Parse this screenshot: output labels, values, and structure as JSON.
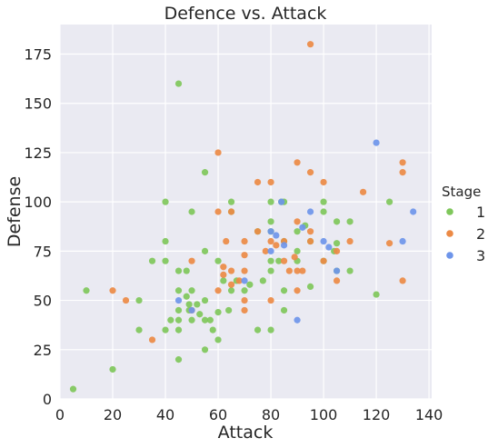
{
  "chart_data": {
    "type": "scatter",
    "title": "Defence vs. Attack",
    "xlabel": "Attack",
    "ylabel": "Defense",
    "xlim": [
      0,
      141
    ],
    "ylim": [
      0,
      190
    ],
    "xticks": [
      0,
      20,
      40,
      60,
      80,
      100,
      120,
      140
    ],
    "yticks": [
      0,
      25,
      50,
      75,
      100,
      125,
      150,
      175
    ],
    "grid": true,
    "background": "#eaeaf2",
    "legend": {
      "title": "Stage",
      "position": "right"
    },
    "series": [
      {
        "name": "1",
        "color": "#7fc75b",
        "points": [
          [
            5,
            5
          ],
          [
            10,
            55
          ],
          [
            20,
            15
          ],
          [
            30,
            50
          ],
          [
            30,
            35
          ],
          [
            35,
            70
          ],
          [
            40,
            100
          ],
          [
            40,
            80
          ],
          [
            40,
            70
          ],
          [
            40,
            35
          ],
          [
            42,
            40
          ],
          [
            45,
            160
          ],
          [
            45,
            65
          ],
          [
            45,
            55
          ],
          [
            45,
            45
          ],
          [
            45,
            40
          ],
          [
            45,
            35
          ],
          [
            45,
            20
          ],
          [
            48,
            52
          ],
          [
            48,
            65
          ],
          [
            49,
            45
          ],
          [
            49,
            48
          ],
          [
            50,
            95
          ],
          [
            50,
            55
          ],
          [
            50,
            40
          ],
          [
            52,
            48
          ],
          [
            53,
            43
          ],
          [
            55,
            115
          ],
          [
            55,
            75
          ],
          [
            55,
            50
          ],
          [
            55,
            40
          ],
          [
            55,
            25
          ],
          [
            57,
            40
          ],
          [
            58,
            35
          ],
          [
            60,
            70
          ],
          [
            60,
            44
          ],
          [
            60,
            30
          ],
          [
            62,
            60
          ],
          [
            64,
            45
          ],
          [
            65,
            100
          ],
          [
            65,
            95
          ],
          [
            65,
            55
          ],
          [
            67,
            60
          ],
          [
            70,
            55
          ],
          [
            72,
            58
          ],
          [
            75,
            85
          ],
          [
            75,
            35
          ],
          [
            77,
            60
          ],
          [
            80,
            100
          ],
          [
            80,
            90
          ],
          [
            80,
            85
          ],
          [
            80,
            70
          ],
          [
            80,
            65
          ],
          [
            80,
            35
          ],
          [
            83,
            70
          ],
          [
            84,
            100
          ],
          [
            85,
            100
          ],
          [
            85,
            80
          ],
          [
            85,
            55
          ],
          [
            85,
            45
          ],
          [
            90,
            85
          ],
          [
            90,
            75
          ],
          [
            90,
            70
          ],
          [
            93,
            88
          ],
          [
            95,
            80
          ],
          [
            95,
            57
          ],
          [
            100,
            100
          ],
          [
            100,
            95
          ],
          [
            100,
            70
          ],
          [
            104,
            75
          ],
          [
            105,
            90
          ],
          [
            105,
            79
          ],
          [
            105,
            65
          ],
          [
            110,
            90
          ],
          [
            110,
            65
          ],
          [
            120,
            53
          ],
          [
            125,
            100
          ]
        ]
      },
      {
        "name": "2",
        "color": "#ec8a45",
        "points": [
          [
            20,
            55
          ],
          [
            25,
            50
          ],
          [
            35,
            30
          ],
          [
            50,
            70
          ],
          [
            50,
            45
          ],
          [
            60,
            125
          ],
          [
            60,
            95
          ],
          [
            60,
            55
          ],
          [
            62,
            63
          ],
          [
            62,
            67
          ],
          [
            63,
            80
          ],
          [
            65,
            95
          ],
          [
            65,
            65
          ],
          [
            65,
            58
          ],
          [
            68,
            60
          ],
          [
            70,
            80
          ],
          [
            70,
            73
          ],
          [
            70,
            65
          ],
          [
            70,
            45
          ],
          [
            70,
            50
          ],
          [
            75,
            110
          ],
          [
            75,
            85
          ],
          [
            78,
            75
          ],
          [
            80,
            110
          ],
          [
            80,
            80
          ],
          [
            80,
            50
          ],
          [
            82,
            78
          ],
          [
            85,
            80
          ],
          [
            85,
            70
          ],
          [
            87,
            65
          ],
          [
            89,
            72
          ],
          [
            90,
            120
          ],
          [
            90,
            90
          ],
          [
            90,
            65
          ],
          [
            90,
            55
          ],
          [
            92,
            65
          ],
          [
            95,
            180
          ],
          [
            95,
            115
          ],
          [
            95,
            80
          ],
          [
            95,
            85
          ],
          [
            100,
            110
          ],
          [
            100,
            70
          ],
          [
            105,
            75
          ],
          [
            105,
            60
          ],
          [
            110,
            80
          ],
          [
            115,
            105
          ],
          [
            125,
            79
          ],
          [
            130,
            120
          ],
          [
            130,
            115
          ],
          [
            130,
            60
          ]
        ]
      },
      {
        "name": "3",
        "color": "#6e95ea",
        "points": [
          [
            45,
            50
          ],
          [
            50,
            45
          ],
          [
            70,
            60
          ],
          [
            80,
            85
          ],
          [
            80,
            75
          ],
          [
            82,
            83
          ],
          [
            84,
            100
          ],
          [
            85,
            78
          ],
          [
            90,
            40
          ],
          [
            92,
            87
          ],
          [
            95,
            95
          ],
          [
            100,
            80
          ],
          [
            102,
            77
          ],
          [
            105,
            65
          ],
          [
            120,
            130
          ],
          [
            130,
            80
          ],
          [
            134,
            95
          ]
        ]
      }
    ]
  }
}
